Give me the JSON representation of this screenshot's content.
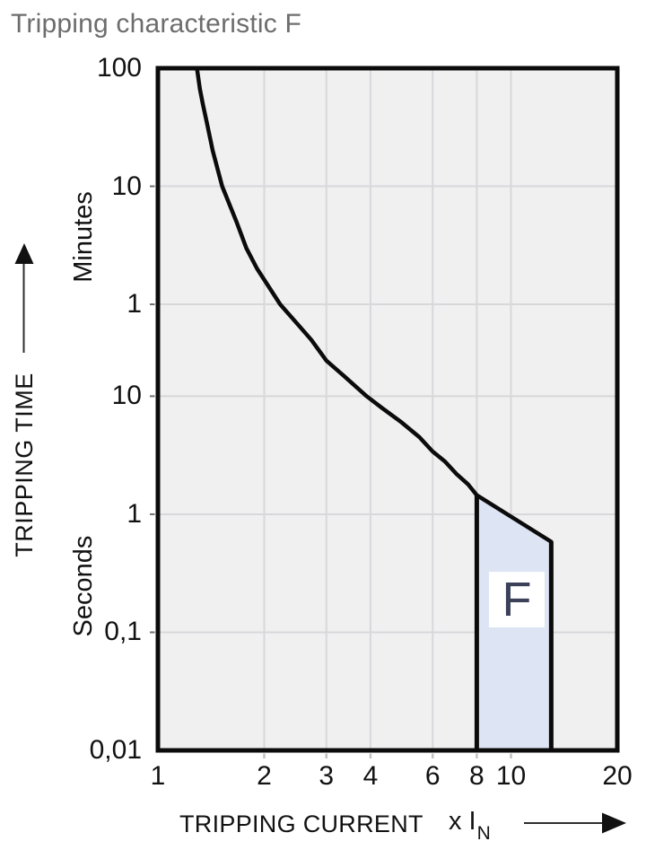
{
  "header": {
    "title": "Tripping characteristic F"
  },
  "chart_data": {
    "type": "line",
    "title": "Tripping characteristic F",
    "grid": true,
    "x_axis": {
      "label": "TRIPPING CURRENT",
      "unit_prefix": "x I",
      "unit_sub": "N",
      "scale": "log",
      "min_multiple": 1,
      "max_multiple": 20,
      "ticks": [
        {
          "v": 1,
          "label": "1",
          "grid": false
        },
        {
          "v": 2,
          "label": "2",
          "grid": true
        },
        {
          "v": 3,
          "label": "3",
          "grid": true
        },
        {
          "v": 4,
          "label": "4",
          "grid": true
        },
        {
          "v": 6,
          "label": "6",
          "grid": true
        },
        {
          "v": 8,
          "label": "8",
          "grid": true
        },
        {
          "v": 10,
          "label": "10",
          "grid": true
        },
        {
          "v": 20,
          "label": "20",
          "grid": false
        }
      ]
    },
    "y_axis": {
      "label": "TRIPPING TIME",
      "scale": "log",
      "min_seconds": 0.01,
      "max_seconds": 6000,
      "ticks": [
        {
          "seconds": 6000,
          "label": "100",
          "grid": false
        },
        {
          "seconds": 600,
          "label": "10",
          "grid": true
        },
        {
          "seconds": 60,
          "label": "1",
          "grid": true
        },
        {
          "seconds": 10,
          "label": "10",
          "grid": true
        },
        {
          "seconds": 1,
          "label": "1",
          "grid": true
        },
        {
          "seconds": 0.1,
          "label": "0,1",
          "grid": true
        },
        {
          "seconds": 0.01,
          "label": "0,01",
          "grid": false
        }
      ],
      "sections": [
        {
          "label": "Minutes"
        },
        {
          "label": "Seconds"
        }
      ]
    },
    "curve": {
      "name": "thermal-tripping-curve",
      "points_multiple_seconds": [
        [
          1.29,
          6000
        ],
        [
          1.315,
          4000
        ],
        [
          1.34,
          3000
        ],
        [
          1.38,
          2000
        ],
        [
          1.43,
          1200
        ],
        [
          1.52,
          600
        ],
        [
          1.67,
          300
        ],
        [
          1.78,
          180
        ],
        [
          1.91,
          120
        ],
        [
          2.22,
          60
        ],
        [
          2.5,
          40
        ],
        [
          2.72,
          30
        ],
        [
          3.0,
          20
        ],
        [
          3.35,
          15
        ],
        [
          3.9,
          10
        ],
        [
          4.3,
          8
        ],
        [
          4.9,
          6
        ],
        [
          5.5,
          4.5
        ],
        [
          6.0,
          3.4
        ],
        [
          6.5,
          2.8
        ],
        [
          7.0,
          2.2
        ],
        [
          7.55,
          1.8
        ],
        [
          8.0,
          1.45
        ]
      ]
    },
    "band": {
      "label": "F",
      "x_range_multiple": [
        8,
        13
      ],
      "top_left_seconds": 1.45,
      "top_right_seconds": 0.585,
      "bottom_seconds": 0.01
    },
    "colors": {
      "plot_bg": "#f0f0f1",
      "grid": "#d8d8da",
      "curve": "#0b0b0b",
      "border": "#0b0b0b",
      "band_fill": "#dde4f3",
      "band_label": "#3a4158",
      "title": "#6d6d6d",
      "text": "#121212"
    }
  }
}
